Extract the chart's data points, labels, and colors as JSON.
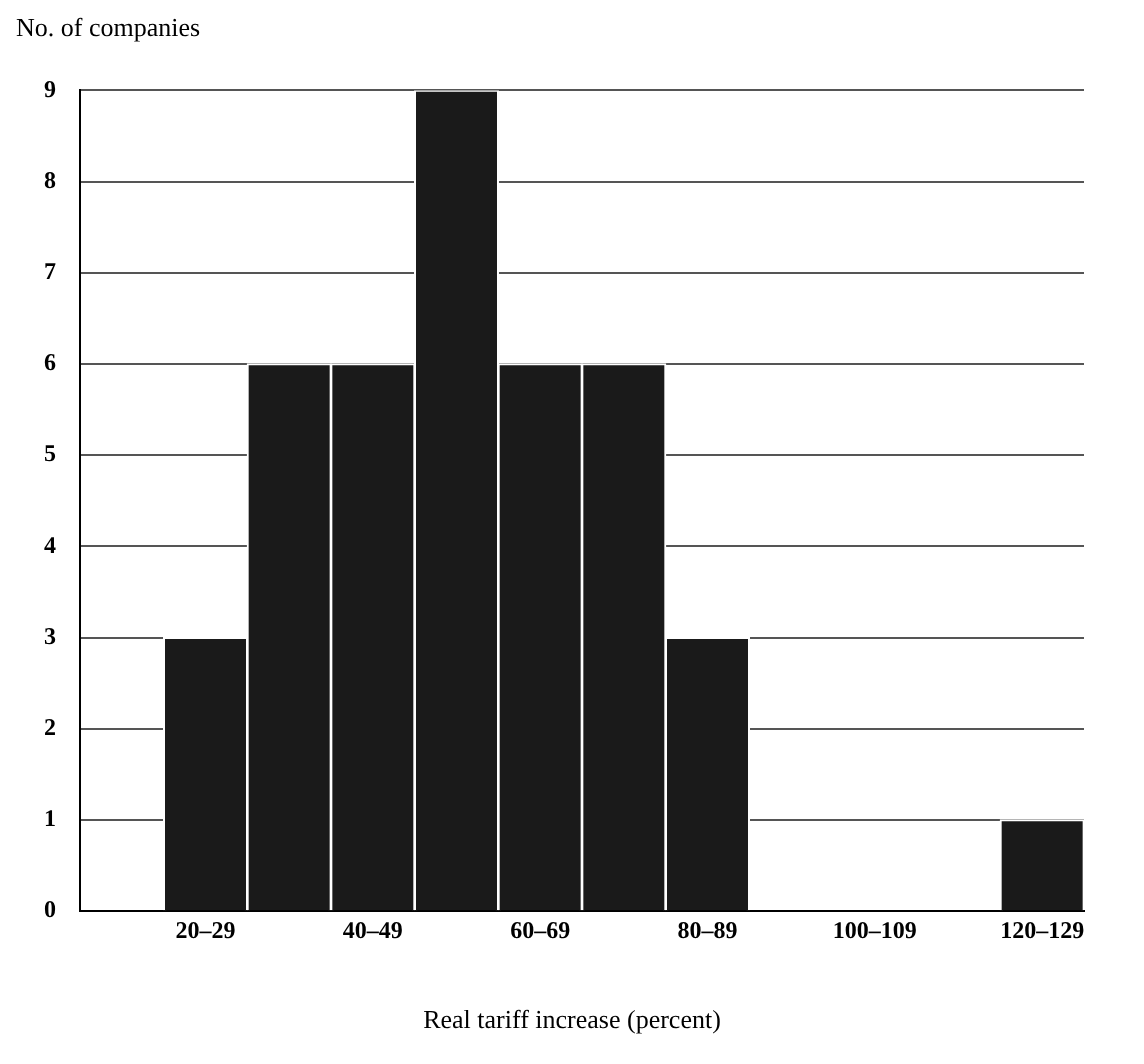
{
  "chart_data": {
    "type": "bar",
    "ylabel": "No. of companies",
    "xlabel": "Real tariff increase (percent)",
    "categories": [
      null,
      "20–29",
      null,
      "40–49",
      null,
      "60–69",
      null,
      "80–89",
      null,
      "100–109",
      null,
      "120–129"
    ],
    "values": [
      0,
      3,
      6,
      6,
      9,
      6,
      6,
      3,
      0,
      0,
      0,
      1
    ],
    "color": "#1a1a1a",
    "ylim": [
      0,
      9
    ],
    "yticks": [
      0,
      1,
      2,
      3,
      4,
      5,
      6,
      7,
      8,
      9
    ],
    "grid": "y",
    "legend": false
  }
}
